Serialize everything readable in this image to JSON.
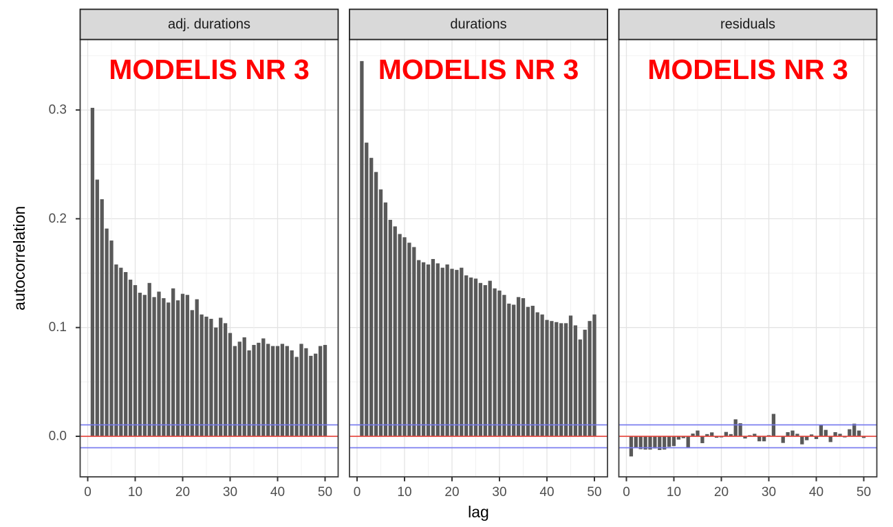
{
  "figure": {
    "background": "#ffffff",
    "xlabel": "lag",
    "ylabel": "autocorrelation",
    "annotation": "MODELIS NR 3"
  },
  "chart_data": {
    "type": "bar",
    "title": "",
    "xlabel": "lag",
    "ylabel": "autocorrelation",
    "x_ticks": [
      0,
      10,
      20,
      30,
      40,
      50
    ],
    "y_ticks": [
      0.0,
      0.1,
      0.2,
      0.3
    ],
    "xlim": [
      -1.7,
      53.2
    ],
    "ylim": [
      -0.0373,
      0.365
    ],
    "grid": "major+minor",
    "legend": "none",
    "ref_lines": {
      "zero": 0.0,
      "conf_upper": 0.0105,
      "conf_lower": -0.0105
    },
    "lags": [
      1,
      2,
      3,
      4,
      5,
      6,
      7,
      8,
      9,
      10,
      11,
      12,
      13,
      14,
      15,
      16,
      17,
      18,
      19,
      20,
      21,
      22,
      23,
      24,
      25,
      26,
      27,
      28,
      29,
      30,
      31,
      32,
      33,
      34,
      35,
      36,
      37,
      38,
      39,
      40,
      41,
      42,
      43,
      44,
      45,
      46,
      47,
      48,
      49,
      50
    ],
    "facets": [
      {
        "label": "adj. durations",
        "annotation": "MODELIS NR 3",
        "values": [
          0.302,
          0.236,
          0.218,
          0.191,
          0.18,
          0.158,
          0.155,
          0.151,
          0.144,
          0.139,
          0.132,
          0.13,
          0.141,
          0.128,
          0.133,
          0.127,
          0.123,
          0.136,
          0.125,
          0.131,
          0.13,
          0.116,
          0.126,
          0.112,
          0.11,
          0.108,
          0.1,
          0.109,
          0.104,
          0.095,
          0.083,
          0.087,
          0.091,
          0.079,
          0.084,
          0.086,
          0.09,
          0.085,
          0.083,
          0.083,
          0.085,
          0.083,
          0.079,
          0.073,
          0.085,
          0.081,
          0.074,
          0.076,
          0.083,
          0.084
        ]
      },
      {
        "label": "durations",
        "annotation": "MODELIS NR 3",
        "values": [
          0.345,
          0.27,
          0.256,
          0.243,
          0.227,
          0.215,
          0.199,
          0.193,
          0.186,
          0.183,
          0.178,
          0.174,
          0.162,
          0.16,
          0.158,
          0.163,
          0.159,
          0.155,
          0.158,
          0.154,
          0.153,
          0.155,
          0.148,
          0.146,
          0.145,
          0.141,
          0.139,
          0.143,
          0.136,
          0.134,
          0.13,
          0.122,
          0.121,
          0.128,
          0.127,
          0.119,
          0.12,
          0.114,
          0.112,
          0.107,
          0.106,
          0.105,
          0.104,
          0.104,
          0.111,
          0.102,
          0.089,
          0.098,
          0.106,
          0.112
        ]
      },
      {
        "label": "residuals",
        "annotation": "MODELIS NR 3",
        "values": [
          -0.0185,
          -0.0105,
          -0.0118,
          -0.0122,
          -0.0122,
          -0.0112,
          -0.0126,
          -0.0122,
          -0.0097,
          -0.009,
          -0.003,
          -0.0017,
          -0.0105,
          0.0025,
          0.0053,
          -0.0063,
          0.002,
          0.0036,
          -0.0013,
          -0.001,
          0.004,
          0.002,
          0.0156,
          0.012,
          -0.002,
          0.001,
          0.0023,
          -0.0046,
          -0.0046,
          0.001,
          0.0206,
          -0.0005,
          -0.0061,
          0.0038,
          0.0053,
          0.0023,
          -0.0074,
          -0.0036,
          0.0017,
          -0.0025,
          0.0107,
          0.0059,
          -0.0053,
          0.0038,
          0.0023,
          -0.001,
          0.0065,
          0.0116,
          0.0053,
          -0.0015
        ]
      }
    ],
    "colors": {
      "bar": "#595959",
      "zero_line": "#e8453c",
      "conf_line": "#7679ef",
      "annotation_text": "#ff0000",
      "grid_major": "#e3e3e3",
      "grid_minor": "#f0f0f0",
      "strip_bg": "#d9d9d9",
      "strip_border": "#1f1f1f",
      "panel_border": "#3c3c3c",
      "tick_mark": "#333333",
      "tick_label": "#4d4d4d",
      "axis_title": "#000000",
      "panel_bg": "#ffffff"
    }
  }
}
